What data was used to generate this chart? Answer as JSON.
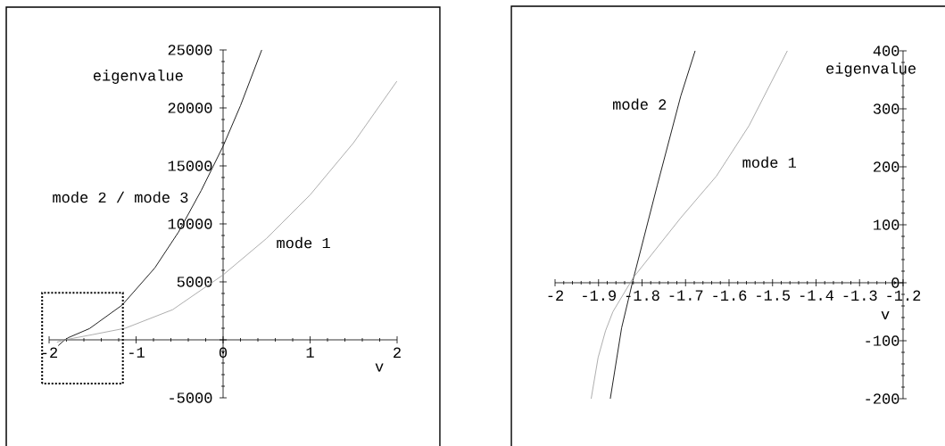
{
  "chart_data": [
    {
      "type": "line",
      "xlabel": "v",
      "ylabel": "eigenvalue",
      "xlim": [
        -2,
        2
      ],
      "ylim": [
        -5000,
        25000
      ],
      "xticks": [
        -2,
        -1,
        0,
        1,
        2
      ],
      "yticks": [
        -5000,
        {
          "value": 0,
          "label": null
        },
        5000,
        10000,
        15000,
        20000,
        25000
      ],
      "legend": false,
      "grid": false,
      "series": [
        {
          "name": "mode 2 / mode 3",
          "color": "#222222",
          "x": [
            -1.895,
            -1.82,
            -1.775,
            -1.536,
            -1.16,
            -0.785,
            -0.512,
            -0.25,
            0,
            0.2,
            0.444
          ],
          "values": [
            -500,
            0,
            200,
            970,
            3000,
            6200,
            9300,
            12900,
            16700,
            20200,
            25000
          ]
        },
        {
          "name": "mode 1",
          "color": "#999999",
          "x": [
            -1.91,
            -1.82,
            -1.5,
            -1.126,
            -0.58,
            0,
            0.5,
            1.0,
            1.5,
            1.997
          ],
          "values": [
            -200,
            0,
            450,
            1000,
            2600,
            5600,
            8750,
            12500,
            17000,
            22300
          ]
        }
      ]
    },
    {
      "type": "line",
      "xlabel": "v",
      "ylabel": "eigenvalue",
      "xlim": [
        -2,
        -1.2
      ],
      "ylim": [
        -200,
        400
      ],
      "xticks": [
        -2,
        -1.9,
        -1.8,
        -1.7,
        -1.6,
        -1.5,
        -1.4,
        -1.3,
        -1.2
      ],
      "yticks": [
        -200,
        -100,
        0,
        100,
        200,
        300,
        400
      ],
      "legend": false,
      "grid": false,
      "series": [
        {
          "name": "mode 2",
          "color": "#222222",
          "x": [
            -1.873,
            -1.847,
            -1.821,
            -1.765,
            -1.711,
            -1.678
          ],
          "values": [
            -200,
            -78,
            4,
            168,
            322,
            400
          ]
        },
        {
          "name": "mode 1",
          "color": "#999999",
          "x": [
            -1.917,
            -1.901,
            -1.884,
            -1.867,
            -1.82,
            -1.711,
            -1.629,
            -1.554,
            -1.466
          ],
          "values": [
            -200,
            -129,
            -83,
            -50,
            9,
            112,
            184,
            271,
            400
          ]
        }
      ]
    }
  ]
}
